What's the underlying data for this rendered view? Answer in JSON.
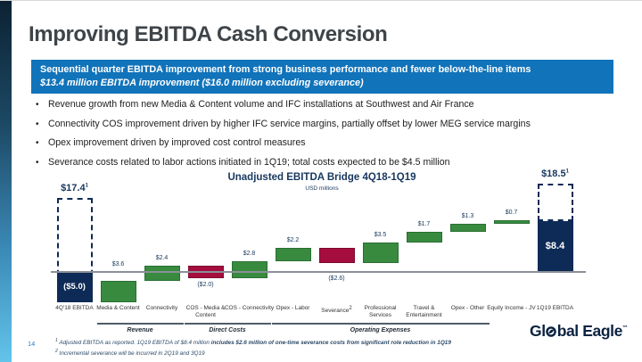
{
  "slide": {
    "title": "Improving EBITDA Cash Conversion",
    "banner": {
      "line1": "Sequential quarter EBITDA improvement from strong business performance and fewer below-the-line items",
      "line2": "$13.4 million EBITDA improvement ($16.0 million excluding severance)"
    },
    "bullets": [
      "Revenue growth from new Media & Content volume and IFC installations at Southwest and Air France",
      "Connectivity COS improvement driven by higher IFC service margins, partially offset by lower MEG service margins",
      "Opex improvement driven by improved cost control measures",
      "Severance costs related to labor actions initiated in 1Q19; total costs expected to be $4.5 million"
    ],
    "page_number": "14",
    "footnotes": [
      {
        "sup": "1",
        "plain": "Adjusted EBITDA as reported. 1Q19 EBITDA of $8.4 million ",
        "bold": "includes $2.6 million of one-time severance costs from significant role reduction in 1Q19"
      },
      {
        "sup": "2",
        "plain": "Incremental severance will be incurred in 2Q19 and 3Q19",
        "bold": ""
      }
    ],
    "logo": {
      "left": "Gl",
      "right": "bal Eagle",
      "mark": "™"
    }
  },
  "chart_data": {
    "type": "bar",
    "subtype": "waterfall",
    "title": "Unadjusted EBITDA Bridge 4Q18-1Q19",
    "subtitle": "USD millions",
    "categories": [
      {
        "label": "4Q'18 EBITDA"
      },
      {
        "label": "Media & Content"
      },
      {
        "label": "Connectivity"
      },
      {
        "label": "COS - Media & Content"
      },
      {
        "label": "COS - Connectivity"
      },
      {
        "label": "Opex - Labor"
      },
      {
        "label": "Severance",
        "sup": "2"
      },
      {
        "label": "Professional Services"
      },
      {
        "label": "Travel & Entertainment"
      },
      {
        "label": "Opex - Other"
      },
      {
        "label": "Equity Income - JV"
      },
      {
        "label": "1Q19 EBITDA"
      }
    ],
    "values": [
      -5.0,
      3.6,
      2.4,
      -2.0,
      2.8,
      2.2,
      -2.6,
      3.5,
      1.7,
      1.3,
      0.7,
      8.4
    ],
    "bar_types": [
      "total",
      "inc",
      "inc",
      "dec",
      "inc",
      "inc",
      "dec",
      "inc",
      "inc",
      "inc",
      "inc",
      "total"
    ],
    "bar_labels": [
      "($5.0)",
      "$3.6",
      "$2.4",
      "($2.0)",
      "$2.8",
      "$2.2",
      "($2.6)",
      "$3.5",
      "$1.7",
      "$1.3",
      "$0.7",
      "$8.4"
    ],
    "ghosts": [
      {
        "column": 0,
        "value": 17.4,
        "label": "$17.4",
        "sup": "1"
      },
      {
        "column": 11,
        "value": 18.5,
        "label": "$18.5",
        "sup": "1"
      }
    ],
    "groups": [
      {
        "label": "Revenue",
        "from": 1,
        "to": 2
      },
      {
        "label": "Direct Costs",
        "from": 3,
        "to": 4
      },
      {
        "label": "Operating Expenses",
        "from": 5,
        "to": 9
      }
    ],
    "axis": {
      "baseline": 0,
      "grid": false,
      "legend": "none"
    },
    "colors": {
      "increase": "#388a3f",
      "decrease": "#a50d3e",
      "total": "#0e2a56",
      "axis_line": "#8a9096",
      "banner": "#1173ba",
      "accent_text": "#17375d"
    }
  }
}
